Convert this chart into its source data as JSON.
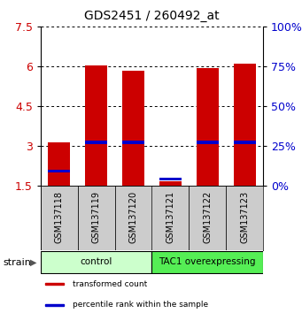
{
  "title": "GDS2451 / 260492_at",
  "samples": [
    "GSM137118",
    "GSM137119",
    "GSM137120",
    "GSM137121",
    "GSM137122",
    "GSM137123"
  ],
  "red_values": [
    3.15,
    6.02,
    5.85,
    1.68,
    5.92,
    6.1
  ],
  "blue_values": [
    2.05,
    3.12,
    3.12,
    1.75,
    3.12,
    3.12
  ],
  "ylim": [
    1.5,
    7.5
  ],
  "yticks": [
    1.5,
    3.0,
    4.5,
    6.0,
    7.5
  ],
  "right_yticks": [
    0,
    25,
    50,
    75,
    100
  ],
  "groups": [
    {
      "label": "control",
      "indices": [
        0,
        1,
        2
      ],
      "color": "#ccffcc"
    },
    {
      "label": "TAC1 overexpressing",
      "indices": [
        3,
        4,
        5
      ],
      "color": "#55ee55"
    }
  ],
  "bar_width": 0.6,
  "red_color": "#cc0000",
  "blue_color": "#0000cc",
  "legend_red": "transformed count",
  "legend_blue": "percentile rank within the sample",
  "left_axis_color": "#cc0000",
  "right_axis_color": "#0000cc",
  "background_color": "#ffffff",
  "tick_bg": "#cccccc"
}
